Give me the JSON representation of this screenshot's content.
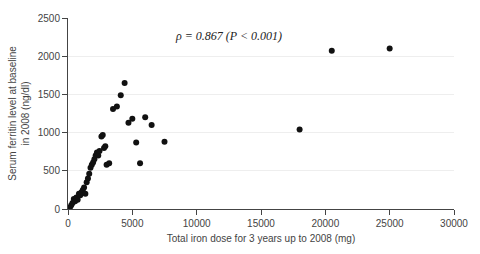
{
  "chart_data": {
    "type": "scatter",
    "x": [
      150,
      250,
      350,
      450,
      550,
      650,
      750,
      850,
      950,
      1050,
      1150,
      1250,
      1350,
      1450,
      1550,
      1650,
      1750,
      1850,
      1950,
      2050,
      2150,
      2250,
      2350,
      2450,
      2600,
      2700,
      2800,
      2900,
      3000,
      3200,
      3500,
      3800,
      4100,
      4400,
      4700,
      5000,
      5300,
      5600,
      6000,
      6500,
      7500,
      18000,
      20500,
      25000
    ],
    "values": [
      20,
      50,
      80,
      130,
      100,
      150,
      120,
      200,
      180,
      220,
      250,
      280,
      200,
      350,
      400,
      460,
      540,
      580,
      610,
      650,
      700,
      740,
      700,
      760,
      950,
      970,
      800,
      820,
      580,
      600,
      1310,
      1340,
      1490,
      1650,
      1130,
      1180,
      870,
      600,
      1200,
      1100,
      880,
      1040,
      2070,
      2100
    ],
    "color": "#111111",
    "marker": "circle",
    "xlabel": "Total iron dose for 3 years up to 2008 (mg)",
    "ylabel": "Serum ferritin level at baseline\nin 2008 (ng/dl)",
    "annotations": [
      {
        "text": "ρ = 0.867 (P < 0.001)",
        "x": 12500,
        "y": 2380
      }
    ],
    "xlim": [
      0,
      30000
    ],
    "ylim": [
      0,
      2500
    ],
    "xticks": [
      0,
      5000,
      10000,
      15000,
      20000,
      25000,
      30000
    ],
    "yticks": [
      0,
      500,
      1000,
      1500,
      2000,
      2500
    ],
    "grid": true
  }
}
